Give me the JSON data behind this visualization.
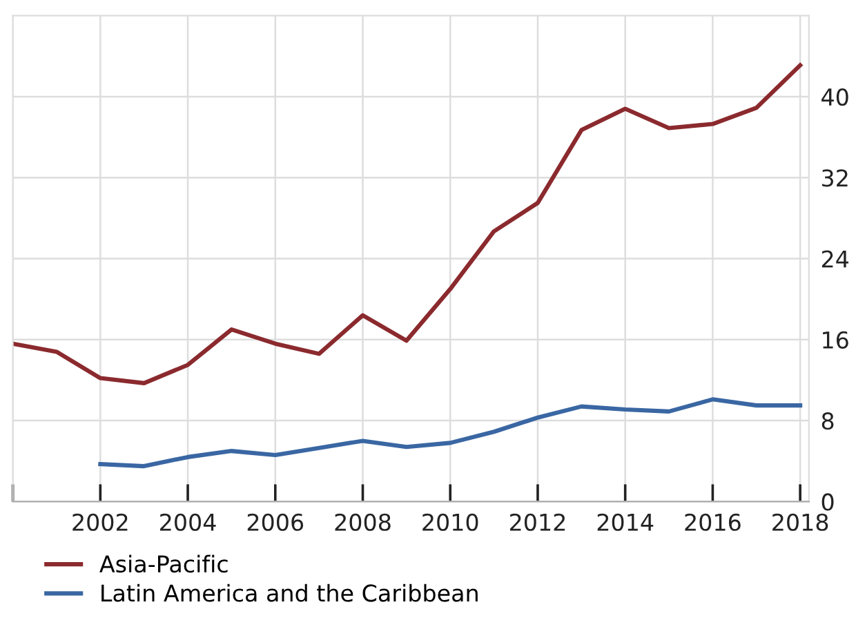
{
  "chart_data": {
    "type": "line",
    "x": [
      2000,
      2001,
      2002,
      2003,
      2004,
      2005,
      2006,
      2007,
      2008,
      2009,
      2010,
      2011,
      2012,
      2013,
      2014,
      2015,
      2016,
      2017,
      2018
    ],
    "series": [
      {
        "name": "Asia-Pacific",
        "color": "#8b2a2e",
        "values": [
          15.6,
          14.8,
          12.2,
          11.7,
          13.5,
          17.0,
          15.6,
          14.6,
          18.4,
          15.9,
          21.0,
          26.7,
          29.5,
          36.7,
          38.8,
          36.9,
          37.3,
          38.9,
          43.1
        ]
      },
      {
        "name": "Latin America and the Caribbean",
        "color": "#3a67a3",
        "values": [
          null,
          null,
          3.7,
          3.5,
          4.4,
          5.0,
          4.6,
          5.3,
          6.0,
          5.4,
          5.8,
          6.9,
          8.3,
          9.4,
          9.1,
          8.9,
          10.1,
          9.5,
          9.5
        ]
      }
    ],
    "xlim": [
      2000,
      2018.2
    ],
    "xticks": [
      {
        "value": 2000,
        "label": null
      },
      2002,
      2004,
      2006,
      2008,
      2010,
      2012,
      2014,
      2016,
      2018
    ],
    "ylim": [
      0,
      48
    ],
    "yticks": [
      0,
      8,
      16,
      24,
      32,
      40
    ],
    "grid": true,
    "legend": "bottom left",
    "marker": "none",
    "line_style": "solid"
  }
}
